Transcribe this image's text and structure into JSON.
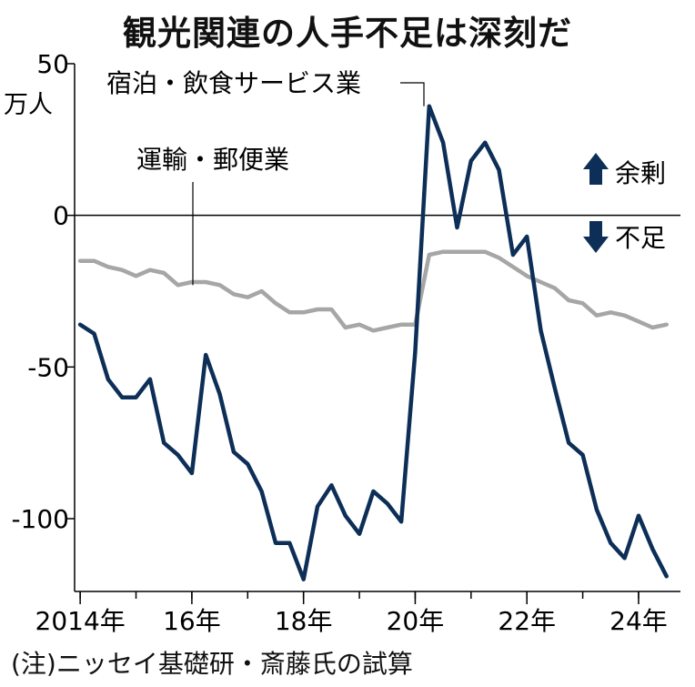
{
  "title": "観光関連の人手不足は深刻だ",
  "note": "(注)ニッセイ基礎研・斎藤氏の試算",
  "chart_data": {
    "type": "line",
    "ylabel": "万人",
    "ylim": [
      -124,
      50
    ],
    "xlim": [
      2013.9,
      2024.75
    ],
    "y_ticks": [
      50,
      0,
      -50,
      -100
    ],
    "x_ticks": [
      {
        "value": 2014,
        "label": "2014年"
      },
      {
        "value": 2016,
        "label": "16年"
      },
      {
        "value": 2018,
        "label": "18年"
      },
      {
        "value": 2020,
        "label": "20年"
      },
      {
        "value": 2022,
        "label": "22年"
      },
      {
        "value": 2024,
        "label": "24年"
      }
    ],
    "grid": false,
    "legend": {
      "surplus": "余剰",
      "shortage": "不足",
      "placement": "right"
    },
    "colors": {
      "lodging": "#0d2f57",
      "transport": "#a6a6a6",
      "zero_line": "#000000"
    },
    "x": [
      2014.0,
      2014.25,
      2014.5,
      2014.75,
      2015.0,
      2015.25,
      2015.5,
      2015.75,
      2016.0,
      2016.25,
      2016.5,
      2016.75,
      2017.0,
      2017.25,
      2017.5,
      2017.75,
      2018.0,
      2018.25,
      2018.5,
      2018.75,
      2019.0,
      2019.25,
      2019.5,
      2019.75,
      2020.0,
      2020.25,
      2020.5,
      2020.75,
      2021.0,
      2021.25,
      2021.5,
      2021.75,
      2022.0,
      2022.25,
      2022.5,
      2022.75,
      2023.0,
      2023.25,
      2023.5,
      2023.75,
      2024.0,
      2024.25,
      2024.5
    ],
    "series": [
      {
        "name": "宿泊・飲食サービス業",
        "key": "lodging",
        "values": [
          -36,
          -39,
          -54,
          -60,
          -60,
          -54,
          -75,
          -79,
          -85,
          -46,
          -59,
          -78,
          -82,
          -91,
          -108,
          -108,
          -120,
          -96,
          -89,
          -99,
          -105,
          -91,
          -95,
          -101,
          -45,
          36,
          24,
          -4,
          18,
          24,
          15,
          -13,
          -7,
          -38,
          -57,
          -75,
          -79,
          -97,
          -108,
          -113,
          -99,
          -110,
          -119
        ]
      },
      {
        "name": "運輸・郵便業",
        "key": "transport",
        "values": [
          -15,
          -15,
          -17,
          -18,
          -20,
          -18,
          -19,
          -23,
          -22,
          -22,
          -23,
          -26,
          -27,
          -25,
          -29,
          -32,
          -32,
          -31,
          -31,
          -37,
          -36,
          -38,
          -37,
          -36,
          -36,
          -13,
          -12,
          -12,
          -12,
          -12,
          -14,
          -17,
          -20,
          -22,
          -24,
          -28,
          -29,
          -33,
          -32,
          -33,
          -35,
          -37,
          -36
        ]
      }
    ]
  }
}
